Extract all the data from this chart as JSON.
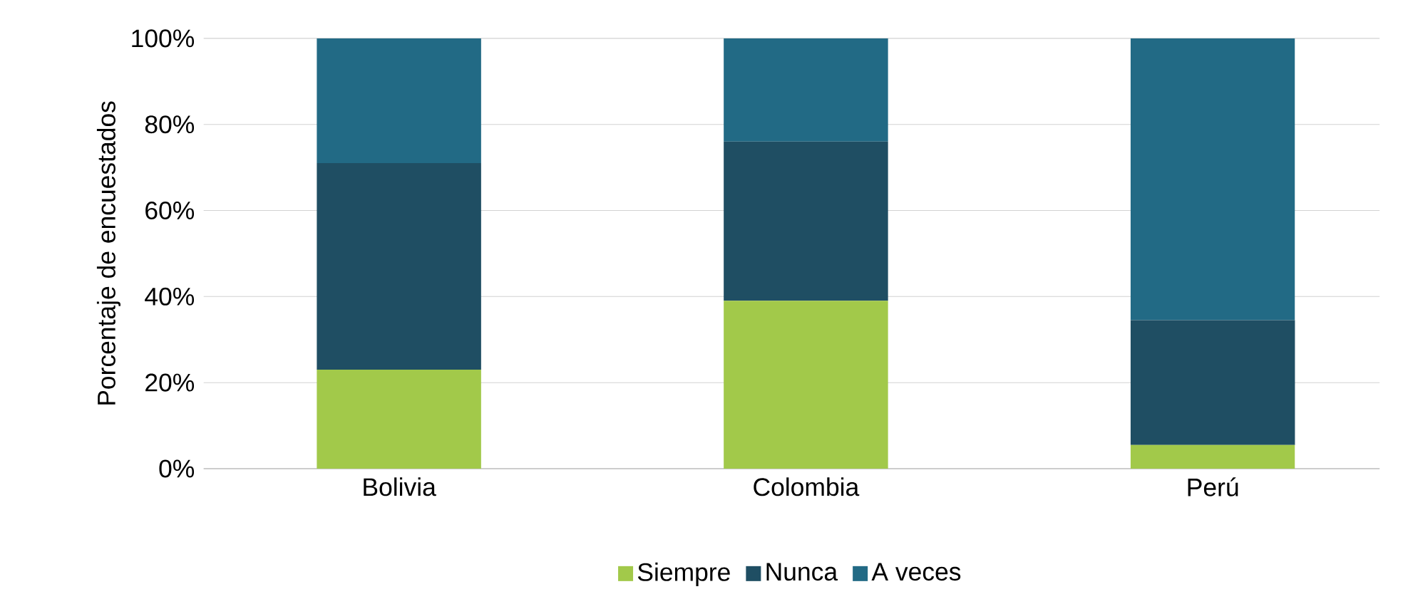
{
  "chart_data": {
    "type": "bar",
    "stacked": true,
    "ylabel": "Porcentaje de encuestados",
    "categories": [
      "Bolivia",
      "Colombia",
      "Perú"
    ],
    "series": [
      {
        "name": "Siempre",
        "color": "#a2c94a",
        "values": [
          23,
          39,
          5.5
        ]
      },
      {
        "name": "Nunca",
        "color": "#1f4e63",
        "values": [
          48,
          37,
          29
        ]
      },
      {
        "name": "A veces",
        "color": "#226a85",
        "values": [
          29,
          24,
          65.5
        ]
      }
    ],
    "ylim": [
      0,
      100
    ],
    "yticks": [
      {
        "value": 0,
        "label": "0%"
      },
      {
        "value": 20,
        "label": "20%"
      },
      {
        "value": 40,
        "label": "40%"
      },
      {
        "value": 60,
        "label": "60%"
      },
      {
        "value": 80,
        "label": "80%"
      },
      {
        "value": 100,
        "label": "100%"
      }
    ],
    "grid": "y",
    "legend": "bottom"
  }
}
